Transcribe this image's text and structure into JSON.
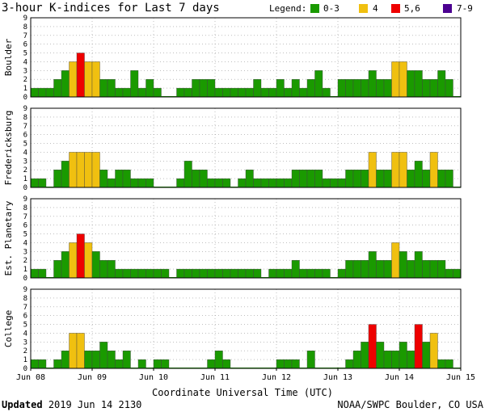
{
  "title": "3-hour K-indices for Last 7 days",
  "legend": {
    "label": "Legend:",
    "items": [
      {
        "label": "0-3",
        "color": "#1a9a00"
      },
      {
        "label": "4",
        "color": "#f0c010"
      },
      {
        "label": "5,6",
        "color": "#ee0000"
      },
      {
        "label": "7-9",
        "color": "#4b0090"
      }
    ]
  },
  "footer": {
    "updated_label": "Updated",
    "updated_value": "2019 Jun 14 2130",
    "credit": "NOAA/SWPC Boulder, CO USA"
  },
  "chart_data": {
    "type": "bar",
    "xlabel": "Coordinate Universal Time (UTC)",
    "x_ticks": [
      "Jun 08",
      "Jun 09",
      "Jun 10",
      "Jun 11",
      "Jun 12",
      "Jun 13",
      "Jun 14",
      "Jun 15"
    ],
    "y_ticks": [
      0,
      1,
      2,
      3,
      4,
      5,
      6,
      7,
      8,
      9
    ],
    "ylim": [
      0,
      9
    ],
    "interval_hours": 3,
    "grid": true,
    "panels": [
      {
        "name": "Boulder",
        "values": [
          1,
          1,
          1,
          2,
          3,
          4,
          5,
          4,
          4,
          2,
          2,
          1,
          1,
          3,
          1,
          2,
          1,
          0,
          0,
          1,
          1,
          2,
          2,
          2,
          1,
          1,
          1,
          1,
          1,
          2,
          1,
          1,
          2,
          1,
          2,
          1,
          2,
          3,
          1,
          0,
          2,
          2,
          2,
          2,
          3,
          2,
          2,
          4,
          4,
          3,
          3,
          2,
          2,
          3,
          2,
          0
        ]
      },
      {
        "name": "Fredericksburg",
        "values": [
          1,
          1,
          0,
          2,
          3,
          4,
          4,
          4,
          4,
          2,
          1,
          2,
          2,
          1,
          1,
          1,
          0,
          0,
          0,
          1,
          3,
          2,
          2,
          1,
          1,
          1,
          0,
          1,
          2,
          1,
          1,
          1,
          1,
          1,
          2,
          2,
          2,
          2,
          1,
          1,
          1,
          2,
          2,
          2,
          4,
          2,
          2,
          4,
          4,
          2,
          3,
          2,
          4,
          2,
          2,
          0
        ]
      },
      {
        "name": "Est. Planetary",
        "values": [
          1,
          1,
          0,
          2,
          3,
          4,
          5,
          4,
          3,
          2,
          2,
          1,
          1,
          1,
          1,
          1,
          1,
          1,
          0,
          1,
          1,
          1,
          1,
          1,
          1,
          1,
          1,
          1,
          1,
          1,
          0,
          1,
          1,
          1,
          2,
          1,
          1,
          1,
          1,
          0,
          1,
          2,
          2,
          2,
          3,
          2,
          2,
          4,
          3,
          2,
          3,
          2,
          2,
          2,
          1,
          1
        ]
      },
      {
        "name": "College",
        "values": [
          1,
          1,
          0,
          1,
          2,
          4,
          4,
          2,
          2,
          3,
          2,
          1,
          2,
          0,
          1,
          0,
          1,
          1,
          0,
          0,
          0,
          0,
          0,
          1,
          2,
          1,
          0,
          0,
          0,
          0,
          0,
          0,
          1,
          1,
          1,
          0,
          2,
          0,
          0,
          0,
          0,
          1,
          2,
          3,
          5,
          3,
          2,
          2,
          3,
          2,
          5,
          3,
          4,
          1,
          1,
          0
        ]
      }
    ]
  }
}
